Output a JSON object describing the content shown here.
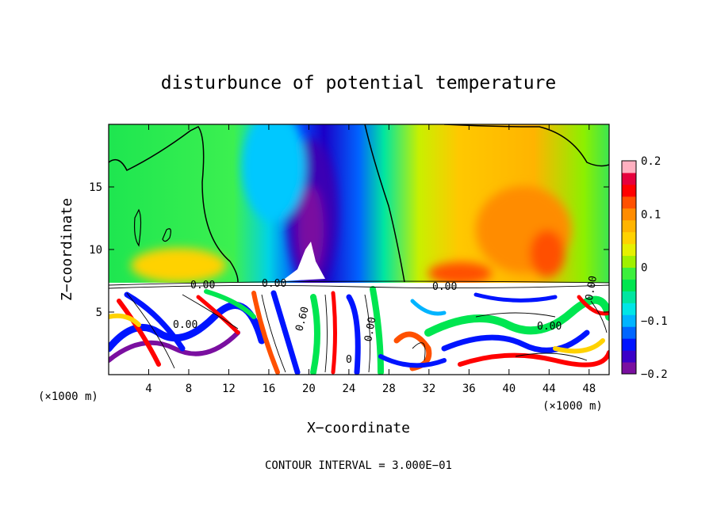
{
  "chart_data": {
    "type": "heatmap",
    "title": "disturbunce of potential temperature",
    "xlabel": "X−coordinate",
    "ylabel": "Z−coordinate",
    "x_unit": "(×1000 m)",
    "x_unit_right": "(×1000 m)",
    "x_range": [
      0,
      50
    ],
    "y_range": [
      0,
      20
    ],
    "x_ticks": [
      "4",
      "8",
      "12",
      "16",
      "20",
      "24",
      "28",
      "32",
      "36",
      "40",
      "44",
      "48"
    ],
    "x_tick_values": [
      4,
      8,
      12,
      16,
      20,
      24,
      28,
      32,
      36,
      40,
      44,
      48
    ],
    "y_ticks": [
      "5",
      "10",
      "15"
    ],
    "y_tick_values": [
      5,
      10,
      15
    ],
    "colorbar": {
      "range": [
        -0.2,
        0.2
      ],
      "tick_labels": [
        "0.2",
        "0.1",
        "0",
        "−0.1",
        "−0.2"
      ],
      "tick_values": [
        0.2,
        0.1,
        0,
        -0.1,
        -0.2
      ],
      "colors": [
        "#7a0fa0",
        "#3b00c8",
        "#0014ff",
        "#0066ff",
        "#00b4ff",
        "#00e6e6",
        "#00e6a0",
        "#00e650",
        "#3cf03c",
        "#a0f000",
        "#e6f000",
        "#ffd200",
        "#ffb400",
        "#ff8c00",
        "#ff5000",
        "#ff0000",
        "#e6003c",
        "#ffb0c0"
      ]
    },
    "contour_labels": [
      "0.00",
      "0.00",
      "0.00",
      "0.00",
      "0.00",
      "0.60",
      "0.00",
      "0.00",
      "0"
    ],
    "footer": "CONTOUR INTERVAL = 3.000E−01",
    "grid": false,
    "legend": "colorbar-right"
  }
}
